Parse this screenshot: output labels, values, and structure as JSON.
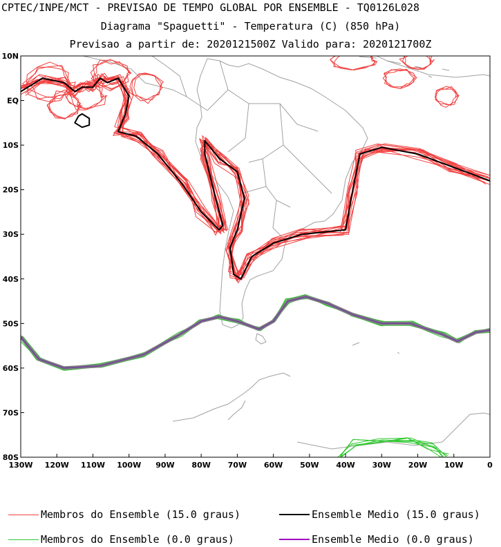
{
  "titles": {
    "line1": "CPTEC/INPE/MCT - PREVISAO DE TEMPO GLOBAL POR ENSEMBLE - TQ0126L028",
    "line2": "Diagrama \"Spaguetti\" - Temperatura (C) (850 hPa)",
    "line3": "Previsao a partir de: 2020121500Z  Valido para: 2020121700Z"
  },
  "axes": {
    "lat_labels": [
      "10N",
      "EQ",
      "10S",
      "20S",
      "30S",
      "40S",
      "50S",
      "60S",
      "70S",
      "80S"
    ],
    "lon_labels": [
      "130W",
      "120W",
      "110W",
      "100W",
      "90W",
      "80W",
      "70W",
      "60W",
      "50W",
      "40W",
      "30W",
      "20W",
      "10W",
      "0"
    ],
    "lon_range": [
      -130,
      0
    ],
    "lat_range": [
      -80,
      10
    ]
  },
  "legend": [
    {
      "label": "Membros do Ensemble (15.0 graus)",
      "color": "#f04040",
      "weight": "thin"
    },
    {
      "label": "Ensemble Medio (15.0 graus)",
      "color": "#000000",
      "weight": "thick"
    },
    {
      "label": "Membros do Ensemble (0.0 graus)",
      "color": "#30c830",
      "weight": "thin"
    },
    {
      "label": "Ensemble Medio (0.0 graus)",
      "color": "#a000c0",
      "weight": "thick"
    }
  ],
  "colors": {
    "coast": "#a0a0a0",
    "member15": "#f04040",
    "mean15": "#000000",
    "member0": "#30c830",
    "mean0": "#606070"
  },
  "contours": {
    "mean_15": [
      [
        -130,
        2
      ],
      [
        -124,
        5
      ],
      [
        -118,
        4
      ],
      [
        -115,
        2
      ],
      [
        -113,
        3
      ],
      [
        -110,
        3
      ],
      [
        -108,
        5
      ],
      [
        -106,
        4
      ],
      [
        -103,
        5
      ],
      [
        -100,
        1
      ],
      [
        -101,
        -3
      ],
      [
        -103,
        -7
      ],
      [
        -98,
        -8
      ],
      [
        -92,
        -12
      ],
      [
        -85,
        -19
      ],
      [
        -80,
        -25
      ],
      [
        -75,
        -29
      ],
      [
        -74,
        -28
      ],
      [
        -76,
        -22
      ],
      [
        -79,
        -12
      ],
      [
        -79,
        -9
      ],
      [
        -75,
        -13
      ],
      [
        -70,
        -16
      ],
      [
        -68,
        -22
      ],
      [
        -70,
        -29
      ],
      [
        -72,
        -33
      ],
      [
        -71,
        -39
      ],
      [
        -69,
        -40
      ],
      [
        -66,
        -35
      ],
      [
        -60,
        -32
      ],
      [
        -52,
        -30
      ],
      [
        -40,
        -29
      ],
      [
        -38,
        -20
      ],
      [
        -36,
        -12
      ],
      [
        -30,
        -10.5
      ],
      [
        -20,
        -12
      ],
      [
        -10,
        -15
      ],
      [
        0,
        -18
      ]
    ],
    "mean_0": [
      [
        -130,
        -53
      ],
      [
        -125,
        -58
      ],
      [
        -118,
        -60
      ],
      [
        -108,
        -59.5
      ],
      [
        -96,
        -57
      ],
      [
        -86,
        -52.5
      ],
      [
        -80,
        -49.5
      ],
      [
        -75,
        -48.5
      ],
      [
        -70,
        -49.5
      ],
      [
        -64,
        -51.3
      ],
      [
        -60,
        -49.5
      ],
      [
        -56,
        -45
      ],
      [
        -51,
        -44
      ],
      [
        -45,
        -45.5
      ],
      [
        -38,
        -48
      ],
      [
        -30,
        -50
      ],
      [
        -22,
        -50
      ],
      [
        -13,
        -52.5
      ],
      [
        -9,
        -54
      ],
      [
        -4,
        -52
      ],
      [
        0,
        -51.5
      ]
    ],
    "south_0": [
      [
        -42,
        -80
      ],
      [
        -38,
        -76.8
      ],
      [
        -30,
        -76
      ],
      [
        -22,
        -76.5
      ],
      [
        -16,
        -77.5
      ],
      [
        -12,
        -80
      ]
    ]
  }
}
